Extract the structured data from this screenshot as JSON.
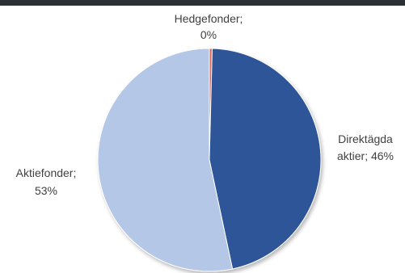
{
  "chart_data": {
    "type": "pie",
    "slices": [
      {
        "name": "Hedgefonder",
        "value": 0.4,
        "label_line1": "Hedgefonder;",
        "label_line2": "0%",
        "color": "#d96b5f"
      },
      {
        "name": "Direktägda aktier",
        "value": 46,
        "label_line1": "Direktägda",
        "label_line2": "aktier; 46%",
        "color": "#2e5597"
      },
      {
        "name": "Aktiefonder",
        "value": 53,
        "label_line1": "Aktiefonder;",
        "label_line2": "53%",
        "color": "#b4c7e7"
      }
    ]
  }
}
